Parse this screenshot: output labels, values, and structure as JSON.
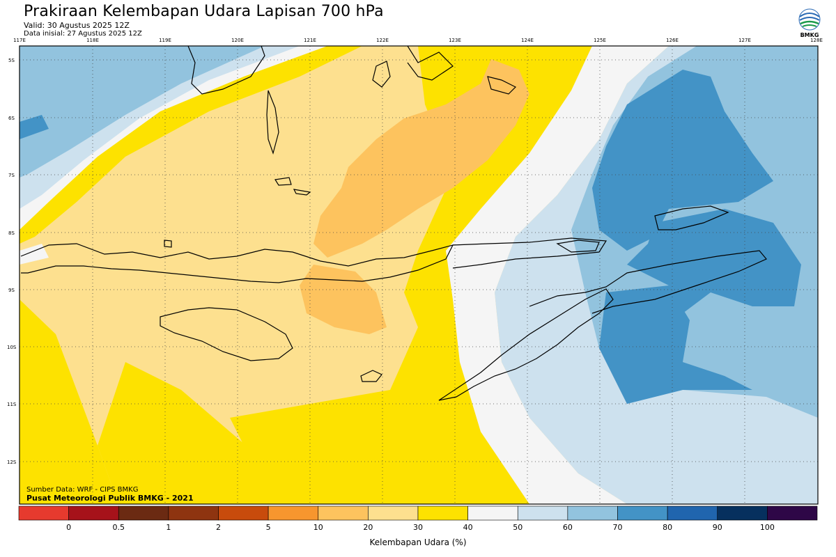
{
  "header": {
    "title": "Prakiraan Kelembapan Udara Lapisan 700 hPa",
    "valid": "Valid: 30 Agustus 2025 12Z",
    "initial": "Data inisial: 27 Agustus 2025 12Z"
  },
  "logo": {
    "text": "BMKG",
    "icon": "bmkg-logo-icon"
  },
  "map": {
    "longitude_labels": [
      "117E",
      "118E",
      "119E",
      "120E",
      "121E",
      "122E",
      "123E",
      "124E",
      "125E",
      "126E",
      "127E",
      "128E"
    ],
    "latitude_labels": [
      "5S",
      "6S",
      "7S",
      "8S",
      "9S",
      "10S",
      "11S",
      "12S"
    ],
    "source_line1": "Sumber Data: WRF - CIPS BMKG",
    "source_line2": "Pusat Meteorologi Publik BMKG - 2021"
  },
  "colorbar": {
    "label": "Kelembapan Udara (%)",
    "ticks": [
      "0",
      "0.5",
      "1",
      "2",
      "5",
      "10",
      "20",
      "30",
      "40",
      "50",
      "60",
      "70",
      "80",
      "90",
      "100"
    ],
    "colors": [
      "#e63a2e",
      "#a6121a",
      "#6b2a12",
      "#8e3410",
      "#c84b0c",
      "#f7962e",
      "#fdc35e",
      "#fde08f",
      "#fde200",
      "#f5f5f5",
      "#cde1ee",
      "#92c3de",
      "#4393c6",
      "#2065ae",
      "#06305e",
      "#2e0747"
    ]
  }
}
